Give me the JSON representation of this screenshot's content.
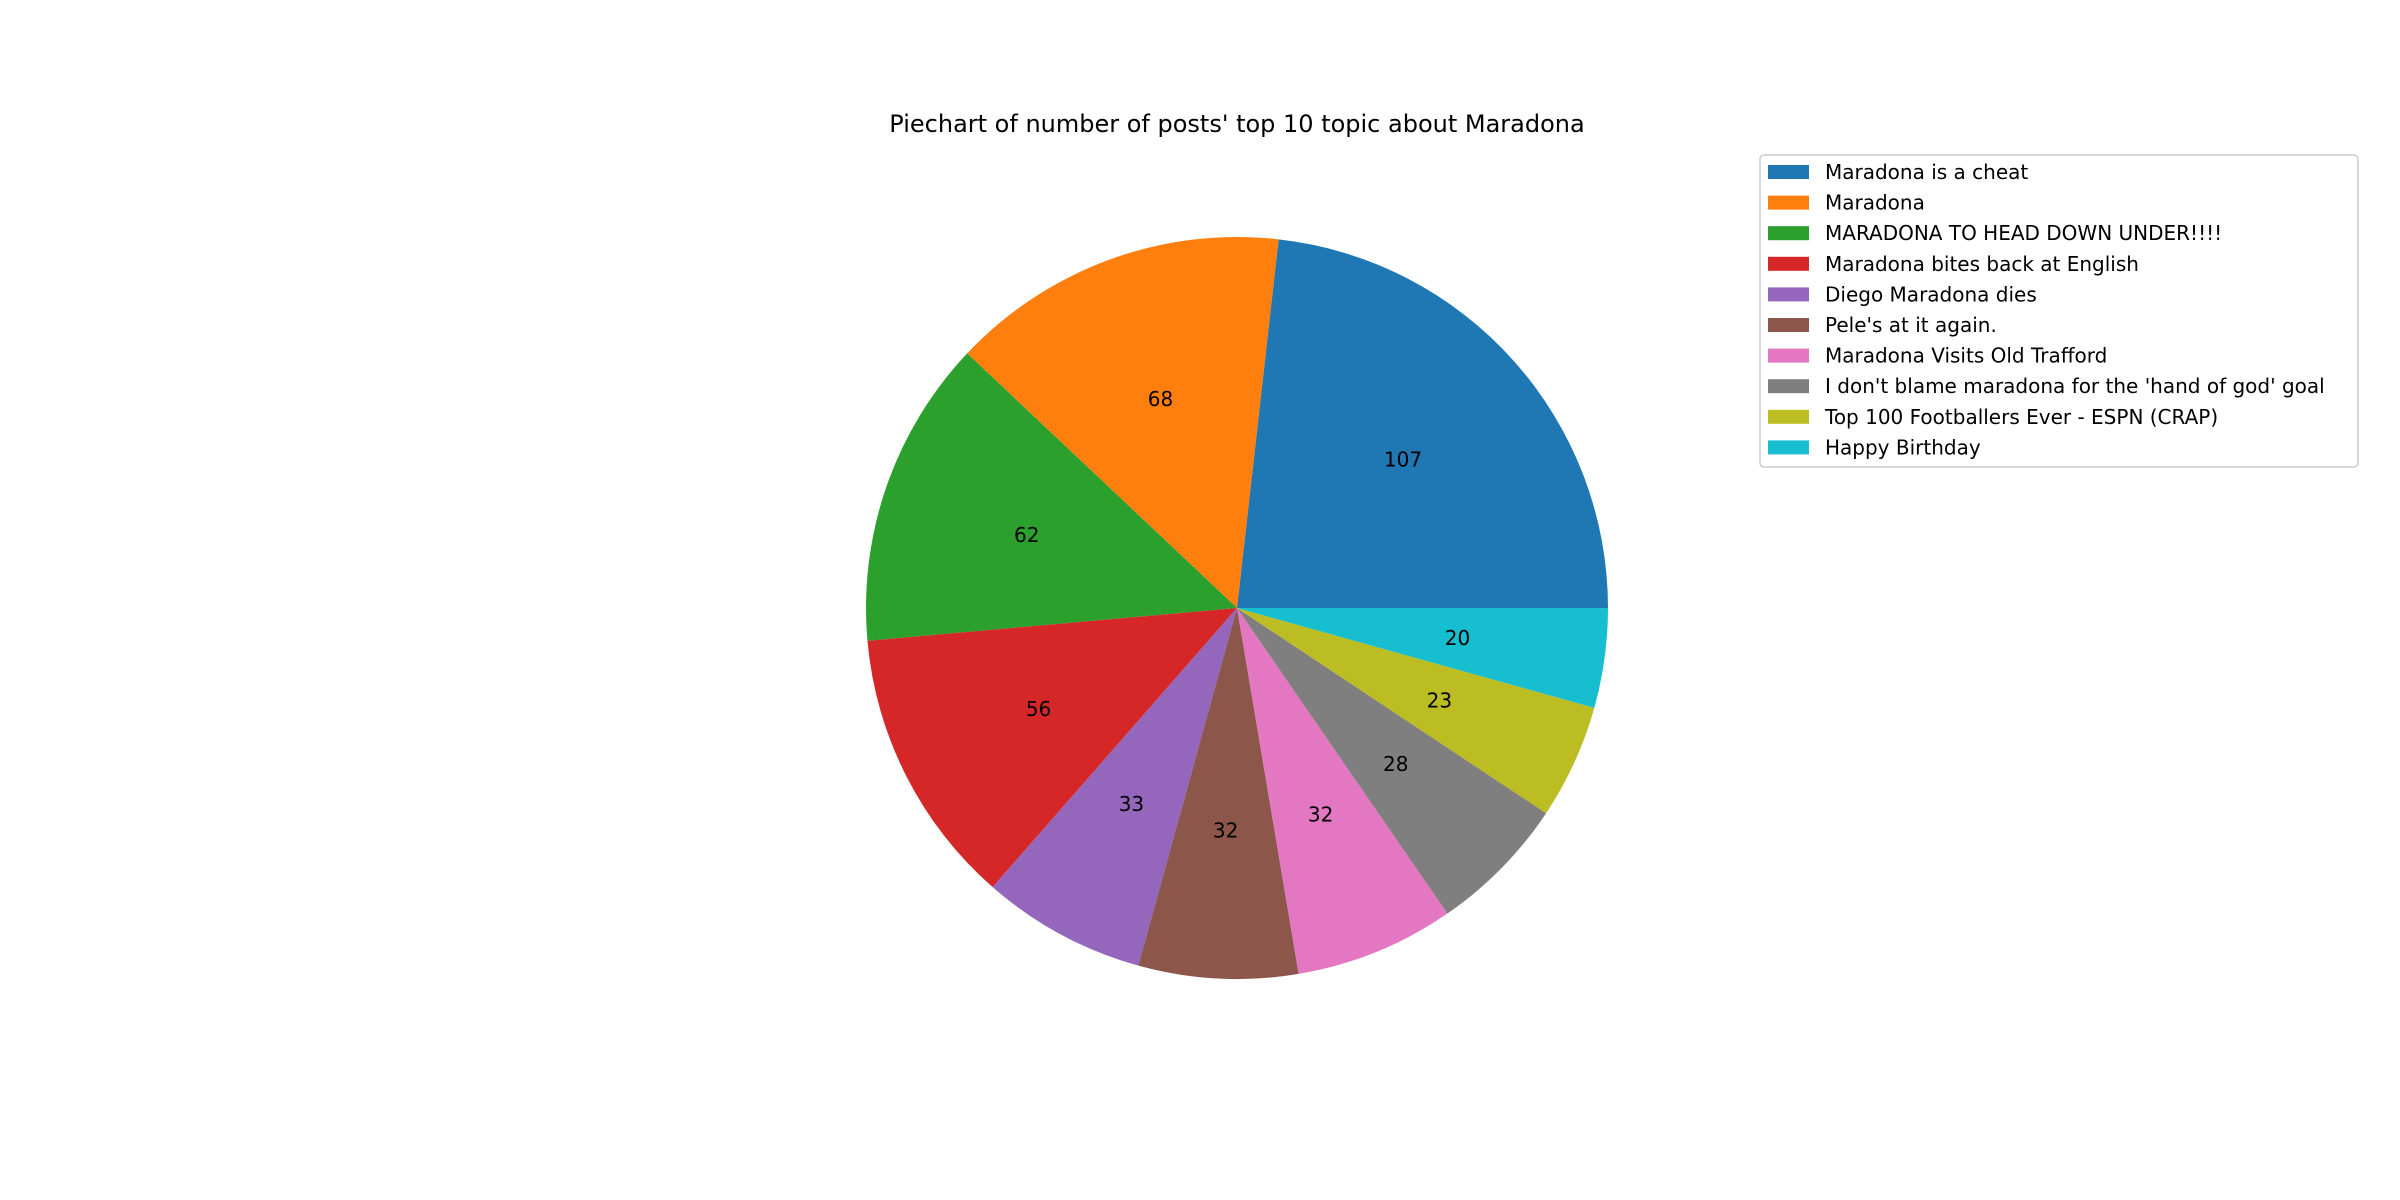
{
  "chart_data": {
    "type": "pie",
    "title": "Piechart of number of posts' top 10 topic about Maradona",
    "categories": [
      "Maradona is a cheat",
      "Maradona",
      "MARADONA TO HEAD DOWN UNDER!!!!",
      "Maradona bites back at English",
      "Diego Maradona dies",
      "Pele's at it again.",
      "Maradona Visits Old Trafford",
      "I don't blame maradona for the 'hand of god' goal",
      "Top 100 Footballers Ever - ESPN (CRAP)",
      "Happy Birthday"
    ],
    "values": [
      107,
      68,
      62,
      56,
      33,
      32,
      32,
      28,
      23,
      20
    ],
    "colors": [
      "#1f77b4",
      "#ff7f0e",
      "#2ca02c",
      "#d62728",
      "#9467bd",
      "#8c564b",
      "#e377c2",
      "#7f7f7f",
      "#bcbd22",
      "#17becf"
    ],
    "start_angle_deg": 0,
    "direction": "counterclockwise",
    "legend_position": "upper-right, outside the pie"
  }
}
